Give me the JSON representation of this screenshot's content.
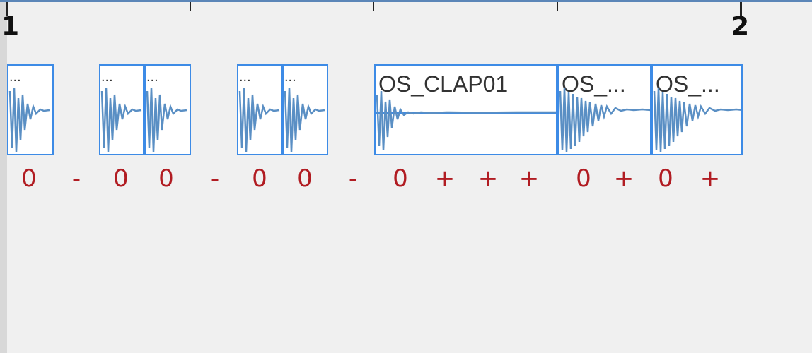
{
  "ruler": {
    "bar_labels": [
      "1",
      "2"
    ]
  },
  "clips": [
    {
      "title": "..."
    },
    {
      "title": "..."
    },
    {
      "title": "..."
    },
    {
      "title": "..."
    },
    {
      "title": "..."
    },
    {
      "title": "OS_CLAP01"
    },
    {
      "title": "OS_..."
    },
    {
      "title": "OS_..."
    }
  ],
  "markers": [
    "0",
    "-",
    "0",
    "0",
    "-",
    "0",
    "0",
    "-",
    "0",
    "+",
    "+",
    "+",
    "0",
    "+",
    "0",
    "+"
  ],
  "colors": {
    "background": "#f0f0f0",
    "clip_border": "#3d8be6",
    "waveform": "#5a8fc4",
    "marker_text": "#b11c22",
    "ruler_line": "#5b86b8"
  }
}
